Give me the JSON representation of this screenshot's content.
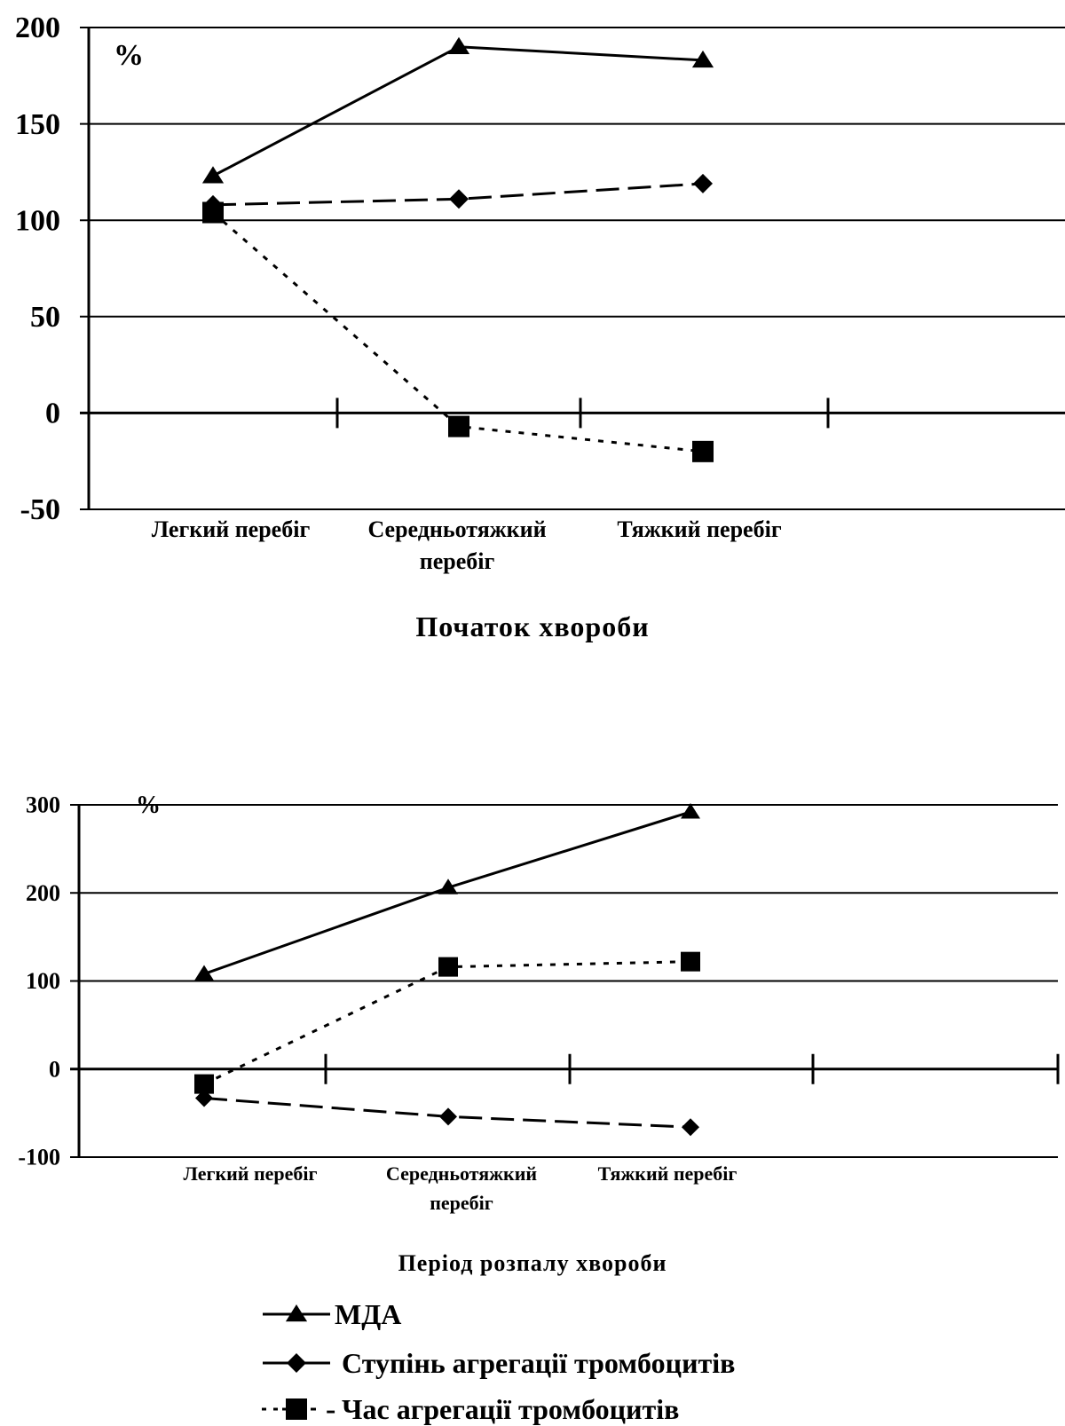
{
  "chart_data": [
    {
      "type": "line",
      "title": "Початок хвороби",
      "ylabel": "%",
      "categories": [
        "Легкий перебіг",
        "Середньотяжкий перебіг",
        "Тяжкий перебіг"
      ],
      "yticks": [
        "200",
        "150",
        "100",
        "50",
        "0",
        "-50"
      ],
      "ylim": [
        -50,
        200
      ],
      "grid": true,
      "series": [
        {
          "name": "МДА",
          "marker": "triangle",
          "dash": "solid",
          "values": [
            123,
            190,
            183
          ]
        },
        {
          "name": "Ступінь агрегації тромбоцитів",
          "marker": "diamond",
          "dash": "long-dash",
          "values": [
            108,
            111,
            119
          ]
        },
        {
          "name": "Час агрегації тромбоцитів",
          "marker": "square",
          "dash": "dotted",
          "values": [
            104,
            -7,
            -20
          ]
        }
      ]
    },
    {
      "type": "line",
      "title": "Період розпалу хвороби",
      "ylabel": "%",
      "categories": [
        "Легкий перебіг",
        "Середньотяжкий перебіг",
        "Тяжкий перебіг"
      ],
      "yticks": [
        "300",
        "200",
        "100",
        "0",
        "-100"
      ],
      "ylim": [
        -100,
        300
      ],
      "grid": true,
      "series": [
        {
          "name": "МДА",
          "marker": "triangle",
          "dash": "solid",
          "values": [
            108,
            206,
            292
          ]
        },
        {
          "name": "Ступінь агрегації тромбоцитів",
          "marker": "diamond",
          "dash": "long-dash",
          "values": [
            -33,
            -54,
            -66
          ]
        },
        {
          "name": "Час агрегації тромбоцитів",
          "marker": "square",
          "dash": "dotted",
          "values": [
            -17,
            116,
            122
          ]
        }
      ]
    }
  ],
  "legend": {
    "placement": "bottom",
    "items": [
      {
        "marker": "triangle",
        "dash": "solid",
        "prefix": "",
        "label": "МДА"
      },
      {
        "marker": "diamond",
        "dash": "long-dash",
        "prefix": "",
        "label": "Ступінь агрегації тромбоцитів"
      },
      {
        "marker": "square",
        "dash": "dotted",
        "prefix": "-",
        "label": "Час агрегації тромбоцитів"
      }
    ]
  }
}
